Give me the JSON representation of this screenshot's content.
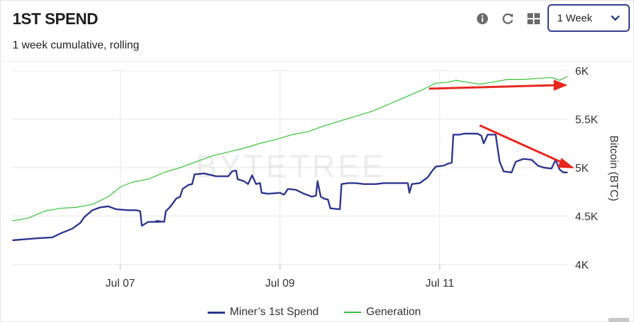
{
  "header": {
    "title": "1ST SPEND",
    "subtitle": "1 week cumulative, rolling",
    "period_select": {
      "selected": "1 Week"
    }
  },
  "toolbar": {
    "icons": [
      "info-icon",
      "refresh-icon",
      "grid-icon",
      "chevron-down-icon"
    ]
  },
  "watermark": {
    "text": "BYTETREE"
  },
  "colors": {
    "miners_spend": "#2c3590",
    "generation": "#35c035",
    "annotation_arrow": "#e8261f",
    "grid": "#e6e6e6",
    "select_border": "#2f3b8f"
  },
  "chart_data": {
    "type": "line",
    "ylabel": "Bitcoin (BTC)",
    "ylim": [
      4000,
      6000
    ],
    "y_ticks": [
      "4K",
      "4.5K",
      "5K",
      "5.5K",
      "6K"
    ],
    "y_tick_values": [
      4000,
      4500,
      5000,
      5500,
      6000
    ],
    "y_axis_position": "right",
    "xlim": [
      0,
      6.95
    ],
    "x_tick_labels": [
      "Jul 07",
      "Jul 09",
      "Jul 11"
    ],
    "x_tick_values": [
      1.35,
      3.35,
      5.35
    ],
    "grid": true,
    "legend_position": "bottom-center",
    "series": [
      {
        "name": "Miner’s 1st Spend",
        "color": "#2c3590",
        "points": [
          [
            0.0,
            4250
          ],
          [
            0.15,
            4260
          ],
          [
            0.3,
            4270
          ],
          [
            0.5,
            4280
          ],
          [
            0.6,
            4320
          ],
          [
            0.75,
            4370
          ],
          [
            0.85,
            4430
          ],
          [
            0.9,
            4490
          ],
          [
            1.0,
            4560
          ],
          [
            1.1,
            4590
          ],
          [
            1.2,
            4600
          ],
          [
            1.3,
            4570
          ],
          [
            1.45,
            4560
          ],
          [
            1.55,
            4560
          ],
          [
            1.6,
            4550
          ],
          [
            1.62,
            4400
          ],
          [
            1.7,
            4440
          ],
          [
            1.85,
            4440
          ],
          [
            1.8,
            4450
          ],
          [
            1.9,
            4440
          ],
          [
            1.92,
            4550
          ],
          [
            1.98,
            4600
          ],
          [
            2.05,
            4680
          ],
          [
            2.1,
            4700
          ],
          [
            2.13,
            4780
          ],
          [
            2.2,
            4820
          ],
          [
            2.25,
            4830
          ],
          [
            2.28,
            4930
          ],
          [
            2.4,
            4940
          ],
          [
            2.55,
            4910
          ],
          [
            2.7,
            4910
          ],
          [
            2.75,
            4960
          ],
          [
            2.8,
            4970
          ],
          [
            2.82,
            4880
          ],
          [
            2.9,
            4860
          ],
          [
            2.95,
            4830
          ],
          [
            3.0,
            4920
          ],
          [
            3.05,
            4830
          ],
          [
            3.1,
            4840
          ],
          [
            3.12,
            4740
          ],
          [
            3.2,
            4730
          ],
          [
            3.35,
            4740
          ],
          [
            3.4,
            4720
          ],
          [
            3.45,
            4780
          ],
          [
            3.55,
            4770
          ],
          [
            3.65,
            4730
          ],
          [
            3.75,
            4700
          ],
          [
            3.8,
            4710
          ],
          [
            3.82,
            4860
          ],
          [
            3.86,
            4700
          ],
          [
            3.9,
            4680
          ],
          [
            3.95,
            4670
          ],
          [
            3.98,
            4580
          ],
          [
            4.1,
            4570
          ],
          [
            4.12,
            4830
          ],
          [
            4.2,
            4840
          ],
          [
            4.3,
            4840
          ],
          [
            4.4,
            4830
          ],
          [
            4.55,
            4830
          ],
          [
            4.65,
            4840
          ],
          [
            4.75,
            4840
          ],
          [
            4.85,
            4840
          ],
          [
            4.95,
            4840
          ],
          [
            4.97,
            4740
          ],
          [
            5.0,
            4830
          ],
          [
            5.1,
            4840
          ],
          [
            5.2,
            4900
          ],
          [
            5.25,
            4960
          ],
          [
            5.3,
            5010
          ],
          [
            5.4,
            5020
          ],
          [
            5.45,
            5040
          ],
          [
            5.5,
            5050
          ],
          [
            5.52,
            5340
          ],
          [
            5.6,
            5340
          ],
          [
            5.65,
            5350
          ],
          [
            5.75,
            5350
          ],
          [
            5.82,
            5350
          ],
          [
            5.87,
            5330
          ],
          [
            5.9,
            5250
          ],
          [
            5.95,
            5340
          ],
          [
            6.05,
            5340
          ],
          [
            6.1,
            5060
          ],
          [
            6.15,
            4960
          ],
          [
            6.25,
            4950
          ],
          [
            6.3,
            5060
          ],
          [
            6.4,
            5090
          ],
          [
            6.5,
            5080
          ],
          [
            6.58,
            5020
          ],
          [
            6.65,
            5000
          ],
          [
            6.75,
            4990
          ],
          [
            6.8,
            5080
          ],
          [
            6.85,
            4980
          ],
          [
            6.9,
            4950
          ],
          [
            6.95,
            4950
          ]
        ]
      },
      {
        "name": "Generation",
        "color": "#35c035",
        "points": [
          [
            0.0,
            4450
          ],
          [
            0.2,
            4480
          ],
          [
            0.4,
            4550
          ],
          [
            0.6,
            4580
          ],
          [
            0.8,
            4590
          ],
          [
            1.0,
            4620
          ],
          [
            1.2,
            4700
          ],
          [
            1.35,
            4800
          ],
          [
            1.5,
            4850
          ],
          [
            1.7,
            4880
          ],
          [
            1.9,
            4950
          ],
          [
            2.1,
            5000
          ],
          [
            2.3,
            5060
          ],
          [
            2.5,
            5120
          ],
          [
            2.7,
            5160
          ],
          [
            2.9,
            5200
          ],
          [
            3.1,
            5250
          ],
          [
            3.3,
            5290
          ],
          [
            3.5,
            5340
          ],
          [
            3.7,
            5370
          ],
          [
            3.9,
            5430
          ],
          [
            4.1,
            5480
          ],
          [
            4.3,
            5530
          ],
          [
            4.5,
            5580
          ],
          [
            4.7,
            5650
          ],
          [
            4.9,
            5720
          ],
          [
            5.1,
            5790
          ],
          [
            5.3,
            5870
          ],
          [
            5.45,
            5880
          ],
          [
            5.55,
            5900
          ],
          [
            5.7,
            5880
          ],
          [
            5.85,
            5860
          ],
          [
            6.0,
            5880
          ],
          [
            6.2,
            5910
          ],
          [
            6.4,
            5910
          ],
          [
            6.6,
            5920
          ],
          [
            6.75,
            5930
          ],
          [
            6.85,
            5900
          ],
          [
            6.95,
            5940
          ]
        ]
      }
    ]
  }
}
